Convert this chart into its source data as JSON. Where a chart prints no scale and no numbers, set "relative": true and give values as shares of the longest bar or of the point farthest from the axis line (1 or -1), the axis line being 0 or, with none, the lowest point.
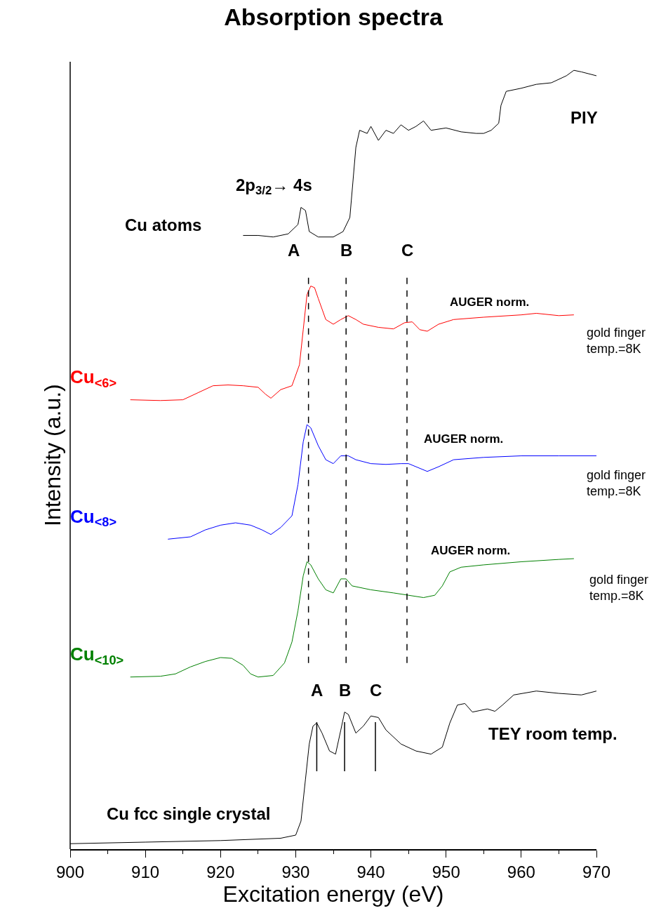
{
  "chart_data": {
    "type": "line",
    "title": "Absorption spectra",
    "xlabel": "Excitation energy (eV)",
    "ylabel": "Intensity (a.u.)",
    "relative": true,
    "xlim": [
      900,
      970
    ],
    "xticks": [
      900,
      910,
      920,
      930,
      940,
      950,
      960,
      970
    ],
    "marker": "none",
    "line_style": "solid",
    "series": [
      {
        "color": "#000000",
        "x": [
          923,
          925,
          927,
          929,
          930.3,
          930.7,
          931.3,
          931.8,
          933,
          935,
          936.3,
          937.2,
          937.6,
          938,
          938.5,
          939.5,
          940,
          941,
          942,
          943,
          944,
          945,
          946,
          947,
          948,
          950,
          952,
          954,
          955,
          956,
          957,
          957.3,
          958,
          960,
          962,
          964,
          966,
          967,
          968,
          970
        ],
        "values": [
          0.788,
          0.788,
          0.786,
          0.79,
          0.802,
          0.824,
          0.82,
          0.793,
          0.786,
          0.786,
          0.793,
          0.811,
          0.856,
          0.901,
          0.923,
          0.919,
          0.928,
          0.91,
          0.923,
          0.919,
          0.93,
          0.923,
          0.928,
          0.935,
          0.923,
          0.926,
          0.921,
          0.919,
          0.919,
          0.923,
          0.932,
          0.955,
          0.973,
          0.977,
          0.982,
          0.984,
          0.993,
          1.0,
          0.998,
          0.993
        ]
      },
      {
        "name": "Cu$_{<6>}$",
        "color": "#ff0000",
        "x": [
          908,
          912,
          915,
          917,
          919,
          921,
          923,
          925,
          926,
          926.7,
          928,
          929.5,
          930.5,
          931,
          931.5,
          932,
          932.5,
          933,
          934,
          935,
          936,
          937,
          938,
          939,
          941,
          943,
          944.5,
          945.5,
          946.5,
          947.5,
          949,
          951,
          955,
          960,
          962,
          965,
          967
        ],
        "values": [
          0.577,
          0.576,
          0.577,
          0.586,
          0.595,
          0.596,
          0.595,
          0.593,
          0.584,
          0.579,
          0.59,
          0.595,
          0.622,
          0.667,
          0.712,
          0.723,
          0.721,
          0.707,
          0.68,
          0.674,
          0.68,
          0.685,
          0.68,
          0.674,
          0.67,
          0.668,
          0.676,
          0.677,
          0.667,
          0.665,
          0.674,
          0.68,
          0.683,
          0.686,
          0.688,
          0.685,
          0.686
        ]
      },
      {
        "name": "Cu$_{<8>}$",
        "color": "#0000ff",
        "x": [
          913,
          916,
          918,
          920,
          922,
          924,
          925.5,
          926.7,
          928,
          929.5,
          930.3,
          931,
          931.5,
          932,
          933,
          934,
          935,
          936,
          937,
          938,
          940,
          942,
          944,
          945,
          946,
          947.5,
          949,
          951,
          955,
          960,
          965,
          970
        ],
        "values": [
          0.398,
          0.401,
          0.41,
          0.416,
          0.419,
          0.416,
          0.41,
          0.404,
          0.413,
          0.428,
          0.468,
          0.523,
          0.545,
          0.541,
          0.518,
          0.5,
          0.495,
          0.505,
          0.505,
          0.5,
          0.495,
          0.494,
          0.495,
          0.495,
          0.491,
          0.485,
          0.491,
          0.5,
          0.503,
          0.505,
          0.505,
          0.505
        ]
      },
      {
        "name": "Cu$_{<10>}$",
        "color": "#008000",
        "x": [
          908,
          912,
          914,
          916,
          918,
          920,
          921.5,
          923,
          924,
          925,
          927,
          928.5,
          929.5,
          930.3,
          931,
          931.5,
          932,
          933,
          934,
          935,
          936,
          936.7,
          937.5,
          940,
          943,
          945,
          947,
          948.5,
          949.5,
          950.5,
          952,
          955,
          960,
          965,
          967
        ],
        "values": [
          0.221,
          0.222,
          0.225,
          0.234,
          0.241,
          0.246,
          0.245,
          0.236,
          0.225,
          0.221,
          0.223,
          0.239,
          0.266,
          0.306,
          0.351,
          0.369,
          0.365,
          0.347,
          0.333,
          0.329,
          0.347,
          0.347,
          0.338,
          0.333,
          0.329,
          0.326,
          0.323,
          0.326,
          0.338,
          0.356,
          0.362,
          0.365,
          0.369,
          0.372,
          0.373
        ]
      },
      {
        "color": "#000000",
        "x": [
          900,
          910,
          920,
          928,
          930,
          930.7,
          931.3,
          931.8,
          932.3,
          932.8,
          933.5,
          934.5,
          935.3,
          936,
          936.5,
          937,
          938,
          939,
          940,
          941,
          942,
          944,
          946,
          948,
          949.5,
          950.5,
          951.5,
          952.5,
          953.5,
          954.5,
          955.5,
          956.5,
          957.5,
          959,
          962,
          965,
          968,
          970
        ],
        "values": [
          0.007,
          0.009,
          0.011,
          0.014,
          0.018,
          0.036,
          0.09,
          0.135,
          0.158,
          0.162,
          0.149,
          0.126,
          0.122,
          0.153,
          0.176,
          0.173,
          0.149,
          0.158,
          0.171,
          0.169,
          0.153,
          0.135,
          0.126,
          0.122,
          0.131,
          0.162,
          0.185,
          0.187,
          0.176,
          0.178,
          0.18,
          0.177,
          0.185,
          0.198,
          0.203,
          0.2,
          0.198,
          0.203
        ]
      }
    ],
    "ref_lines": [
      {
        "axis": "x",
        "value": 931.7,
        "label": "A",
        "line_style": "dashed",
        "color": "#000000"
      },
      {
        "axis": "x",
        "value": 936.7,
        "label": "B",
        "line_style": "dashed",
        "color": "#000000"
      },
      {
        "axis": "x",
        "value": 944.8,
        "label": "C",
        "line_style": "dashed",
        "color": "#000000"
      },
      {
        "axis": "x",
        "value": 932.8,
        "label": "A",
        "line_style": "solid",
        "color": "#000000"
      },
      {
        "axis": "x",
        "value": 936.5,
        "label": "B",
        "line_style": "solid",
        "color": "#000000"
      },
      {
        "axis": "x",
        "value": 940.6,
        "label": "C",
        "line_style": "solid",
        "color": "#000000"
      }
    ],
    "annotations": [
      "2p$_{3/2}$→ 4s",
      "Cu atoms",
      "PIY",
      "AUGER norm.",
      "gold finger\ntemp.=8K",
      "AUGER norm.",
      "gold finger\ntemp.=8K",
      "AUGER norm.",
      "gold finger\ntemp.=8K",
      "TEY room temp.",
      "Cu fcc single crystal"
    ]
  }
}
